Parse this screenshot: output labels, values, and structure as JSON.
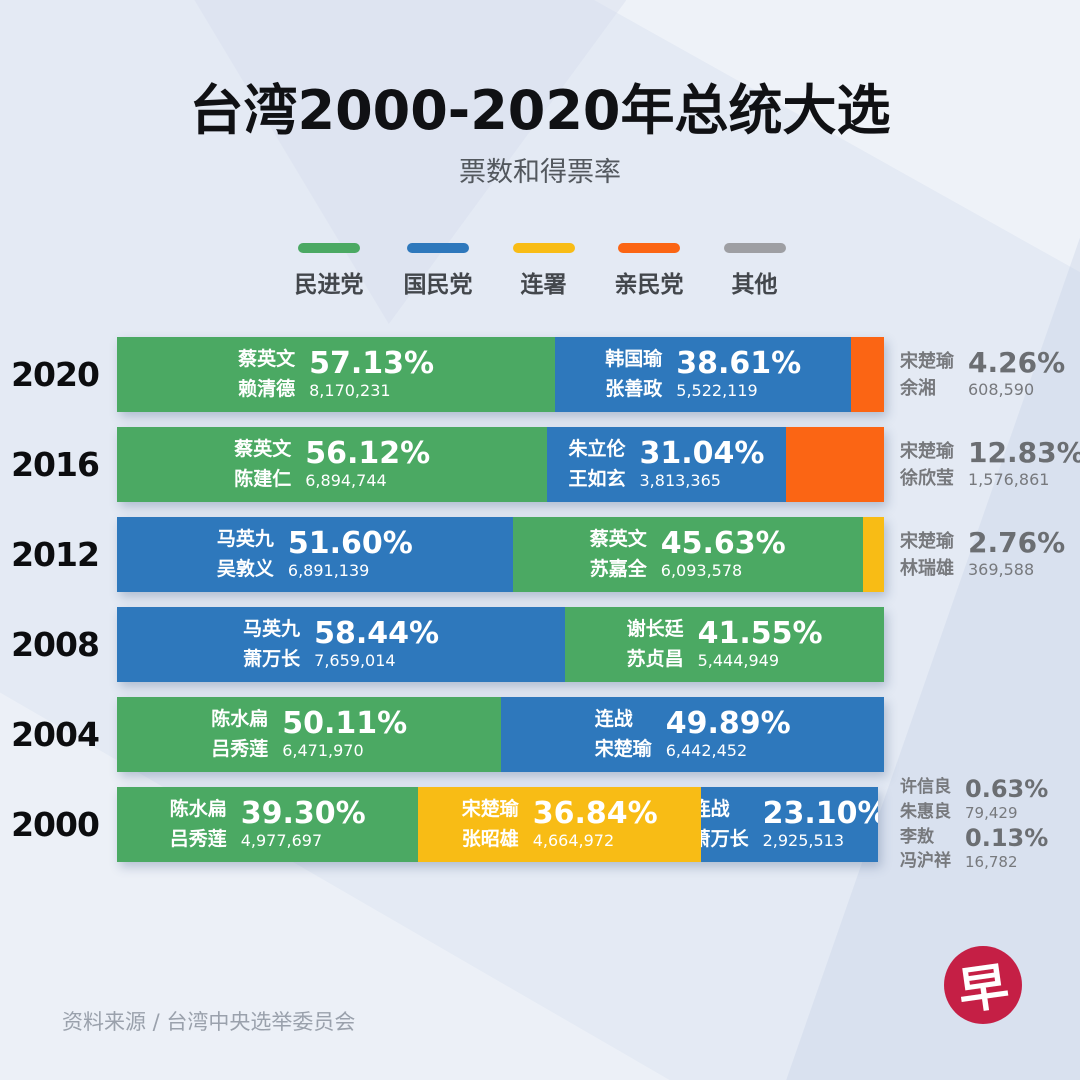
{
  "page": {
    "title": "台湾2000-2020年总统大选",
    "subtitle": "票数和得票率",
    "source": "资料来源 / 台湾中央选举委员会",
    "logo_glyph": "早"
  },
  "colors": {
    "green": "#4ba963",
    "blue": "#2e78bc",
    "yellow": "#f8bc15",
    "orange": "#fb6514",
    "gray": "#9e9fa3",
    "logo_red": "#c51f45"
  },
  "legend": {
    "items": [
      {
        "label": "民进党",
        "color": "#4ba963"
      },
      {
        "label": "国民党",
        "color": "#2e78bc"
      },
      {
        "label": "连署",
        "color": "#f8bc15"
      },
      {
        "label": "亲民党",
        "color": "#fb6514"
      },
      {
        "label": "其他",
        "color": "#9e9fa3"
      }
    ]
  },
  "chart_data": {
    "type": "bar",
    "orientation": "horizontal-stacked",
    "title": "台湾2000-2020年总统大选",
    "subtitle": "票数和得票率",
    "unit": "percent of vote; votes absolute",
    "xlim": [
      0,
      100
    ],
    "rows": [
      {
        "year": "2020",
        "total": 100,
        "segments": [
          {
            "party": "民进党",
            "candidate1": "蔡英文",
            "candidate2": "赖清德",
            "percent": "57.13%",
            "value": 57.13,
            "votes": "8,170,231"
          },
          {
            "party": "国民党",
            "candidate1": "韩国瑜",
            "candidate2": "张善政",
            "percent": "38.61%",
            "value": 38.61,
            "votes": "5,522,119"
          },
          {
            "party": "亲民党",
            "candidate1": "宋楚瑜",
            "candidate2": "余湘",
            "percent": "4.26%",
            "value": 4.26,
            "votes": "608,590"
          }
        ],
        "annotations": [
          {
            "party": "亲民党",
            "candidate1": "宋楚瑜",
            "candidate2": "余湘",
            "percent": "4.26%",
            "votes": "608,590"
          }
        ]
      },
      {
        "year": "2016",
        "total": 99.99,
        "segments": [
          {
            "party": "民进党",
            "candidate1": "蔡英文",
            "candidate2": "陈建仁",
            "percent": "56.12%",
            "value": 56.12,
            "votes": "6,894,744"
          },
          {
            "party": "国民党",
            "candidate1": "朱立伦",
            "candidate2": "王如玄",
            "percent": "31.04%",
            "value": 31.04,
            "votes": "3,813,365"
          },
          {
            "party": "亲民党",
            "candidate1": "宋楚瑜",
            "candidate2": "徐欣莹",
            "percent": "12.83%",
            "value": 12.83,
            "votes": "1,576,861"
          }
        ],
        "annotations": [
          {
            "party": "亲民党",
            "candidate1": "宋楚瑜",
            "candidate2": "徐欣莹",
            "percent": "12.83%",
            "votes": "1,576,861"
          }
        ]
      },
      {
        "year": "2012",
        "total": 99.99,
        "segments": [
          {
            "party": "国民党",
            "candidate1": "马英九",
            "candidate2": "吴敦义",
            "percent": "51.60%",
            "value": 51.6,
            "votes": "6,891,139"
          },
          {
            "party": "民进党",
            "candidate1": "蔡英文",
            "candidate2": "苏嘉全",
            "percent": "45.63%",
            "value": 45.63,
            "votes": "6,093,578"
          },
          {
            "party": "连署",
            "candidate1": "宋楚瑜",
            "candidate2": "林瑞雄",
            "percent": "2.76%",
            "value": 2.76,
            "votes": "369,588"
          }
        ],
        "annotations": [
          {
            "party": "连署",
            "candidate1": "宋楚瑜",
            "candidate2": "林瑞雄",
            "percent": "2.76%",
            "votes": "369,588"
          }
        ]
      },
      {
        "year": "2008",
        "total": 99.99,
        "segments": [
          {
            "party": "国民党",
            "candidate1": "马英九",
            "candidate2": "萧万长",
            "percent": "58.44%",
            "value": 58.44,
            "votes": "7,659,014"
          },
          {
            "party": "民进党",
            "candidate1": "谢长廷",
            "candidate2": "苏贞昌",
            "percent": "41.55%",
            "value": 41.55,
            "votes": "5,444,949"
          }
        ],
        "annotations": []
      },
      {
        "year": "2004",
        "total": 100,
        "segments": [
          {
            "party": "民进党",
            "candidate1": "陈水扁",
            "candidate2": "吕秀莲",
            "percent": "50.11%",
            "value": 50.11,
            "votes": "6,471,970"
          },
          {
            "party": "国民党",
            "candidate1": "连战",
            "candidate2": "宋楚瑜",
            "percent": "49.89%",
            "value": 49.89,
            "votes": "6,442,452"
          }
        ],
        "annotations": []
      },
      {
        "year": "2000",
        "total": 99.24,
        "segments": [
          {
            "party": "民进党",
            "candidate1": "陈水扁",
            "candidate2": "吕秀莲",
            "percent": "39.30%",
            "value": 39.3,
            "votes": "4,977,697"
          },
          {
            "party": "连署",
            "candidate1": "宋楚瑜",
            "candidate2": "张昭雄",
            "percent": "36.84%",
            "value": 36.84,
            "votes": "4,664,972"
          },
          {
            "party": "国民党",
            "candidate1": "连战",
            "candidate2": "萧万长",
            "percent": "23.10%",
            "value": 23.1,
            "votes": "2,925,513"
          }
        ],
        "annotations": [
          {
            "party": "其他",
            "candidate1": "许信良",
            "candidate2": "朱惠良",
            "percent": "0.63%",
            "votes": "79,429"
          },
          {
            "party": "其他",
            "candidate1": "李敖",
            "candidate2": "冯沪祥",
            "percent": "0.13%",
            "votes": "16,782"
          }
        ]
      }
    ]
  }
}
